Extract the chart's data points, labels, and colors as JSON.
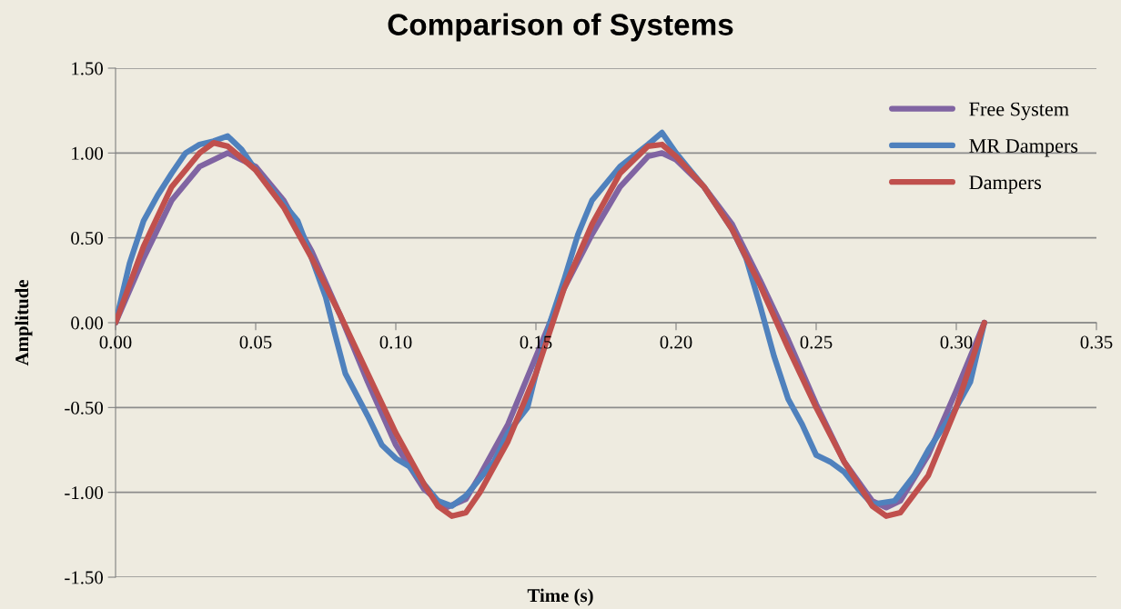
{
  "chart_data": {
    "type": "line",
    "title": "Comparison of Systems",
    "xlabel": "Time (s)",
    "ylabel": "Amplitude",
    "xlim": [
      0,
      0.35
    ],
    "xticks": [
      {
        "value": 0,
        "label": "0.00"
      },
      {
        "value": 0.05,
        "label": "0.05"
      },
      {
        "value": 0.1,
        "label": "0.10"
      },
      {
        "value": 0.15,
        "label": "0.15"
      },
      {
        "value": 0.2,
        "label": "0.20"
      },
      {
        "value": 0.25,
        "label": "0.25"
      },
      {
        "value": 0.3,
        "label": "0.30"
      },
      {
        "value": 0.35,
        "label": "0.35"
      }
    ],
    "ylim": [
      -1.5,
      1.5
    ],
    "yticks": [
      {
        "value": -1.5,
        "label": "-1.50"
      },
      {
        "value": -1,
        "label": "-1.00"
      },
      {
        "value": -0.5,
        "label": "-0.50"
      },
      {
        "value": 0,
        "label": "0.00"
      },
      {
        "value": 0.5,
        "label": "0.50"
      },
      {
        "value": 1,
        "label": "1.00"
      },
      {
        "value": 1.5,
        "label": "1.50"
      }
    ],
    "grid": "y",
    "legend": "top right",
    "marker": "none",
    "line_style": "solid",
    "series": [
      {
        "name": "Free System",
        "color": "#8064a2",
        "x": [
          0,
          0.01,
          0.02,
          0.03,
          0.04,
          0.05,
          0.06,
          0.07,
          0.08,
          0.09,
          0.1,
          0.11,
          0.118,
          0.125,
          0.13,
          0.14,
          0.15,
          0.155,
          0.16,
          0.17,
          0.18,
          0.19,
          0.195,
          0.2,
          0.21,
          0.22,
          0.23,
          0.24,
          0.25,
          0.26,
          0.27,
          0.275,
          0.28,
          0.29,
          0.3,
          0.31
        ],
        "values": [
          0,
          0.38,
          0.72,
          0.92,
          1.0,
          0.92,
          0.72,
          0.42,
          0.05,
          -0.35,
          -0.72,
          -0.98,
          -1.09,
          -1.04,
          -0.9,
          -0.6,
          -0.2,
          0,
          0.2,
          0.52,
          0.8,
          0.98,
          1.0,
          0.96,
          0.8,
          0.58,
          0.25,
          -0.1,
          -0.48,
          -0.82,
          -1.05,
          -1.09,
          -1.05,
          -0.78,
          -0.4,
          0
        ]
      },
      {
        "name": "MR Dampers",
        "color": "#4f81bd",
        "x": [
          0,
          0.005,
          0.01,
          0.015,
          0.02,
          0.025,
          0.03,
          0.035,
          0.04,
          0.045,
          0.05,
          0.06,
          0.065,
          0.07,
          0.075,
          0.078,
          0.082,
          0.09,
          0.095,
          0.1,
          0.105,
          0.11,
          0.115,
          0.12,
          0.125,
          0.13,
          0.135,
          0.14,
          0.147,
          0.15,
          0.155,
          0.16,
          0.165,
          0.17,
          0.18,
          0.19,
          0.195,
          0.2,
          0.21,
          0.22,
          0.225,
          0.23,
          0.235,
          0.24,
          0.245,
          0.25,
          0.255,
          0.26,
          0.265,
          0.27,
          0.278,
          0.285,
          0.29,
          0.3,
          0.305,
          0.31
        ],
        "values": [
          0,
          0.35,
          0.6,
          0.75,
          0.88,
          1.0,
          1.05,
          1.07,
          1.1,
          1.02,
          0.9,
          0.7,
          0.6,
          0.38,
          0.15,
          -0.05,
          -0.3,
          -0.55,
          -0.72,
          -0.8,
          -0.85,
          -0.95,
          -1.05,
          -1.08,
          -1.02,
          -0.92,
          -0.82,
          -0.65,
          -0.5,
          -0.3,
          0,
          0.25,
          0.52,
          0.72,
          0.92,
          1.05,
          1.12,
          1.0,
          0.8,
          0.55,
          0.38,
          0.1,
          -0.2,
          -0.45,
          -0.6,
          -0.78,
          -0.82,
          -0.88,
          -0.98,
          -1.07,
          -1.05,
          -0.9,
          -0.75,
          -0.5,
          -0.35,
          0
        ]
      },
      {
        "name": "Dampers",
        "color": "#c0504d",
        "x": [
          0,
          0.01,
          0.02,
          0.03,
          0.035,
          0.04,
          0.05,
          0.06,
          0.07,
          0.08,
          0.09,
          0.1,
          0.11,
          0.115,
          0.12,
          0.125,
          0.13,
          0.14,
          0.15,
          0.155,
          0.16,
          0.17,
          0.18,
          0.19,
          0.195,
          0.2,
          0.21,
          0.22,
          0.23,
          0.24,
          0.25,
          0.26,
          0.27,
          0.275,
          0.28,
          0.29,
          0.3,
          0.31
        ],
        "values": [
          0,
          0.45,
          0.8,
          1.0,
          1.06,
          1.04,
          0.9,
          0.68,
          0.38,
          0.05,
          -0.3,
          -0.65,
          -0.95,
          -1.08,
          -1.14,
          -1.12,
          -1.0,
          -0.7,
          -0.3,
          -0.05,
          0.2,
          0.58,
          0.88,
          1.04,
          1.05,
          0.98,
          0.8,
          0.55,
          0.22,
          -0.15,
          -0.5,
          -0.82,
          -1.08,
          -1.14,
          -1.12,
          -0.9,
          -0.5,
          0
        ]
      }
    ]
  }
}
